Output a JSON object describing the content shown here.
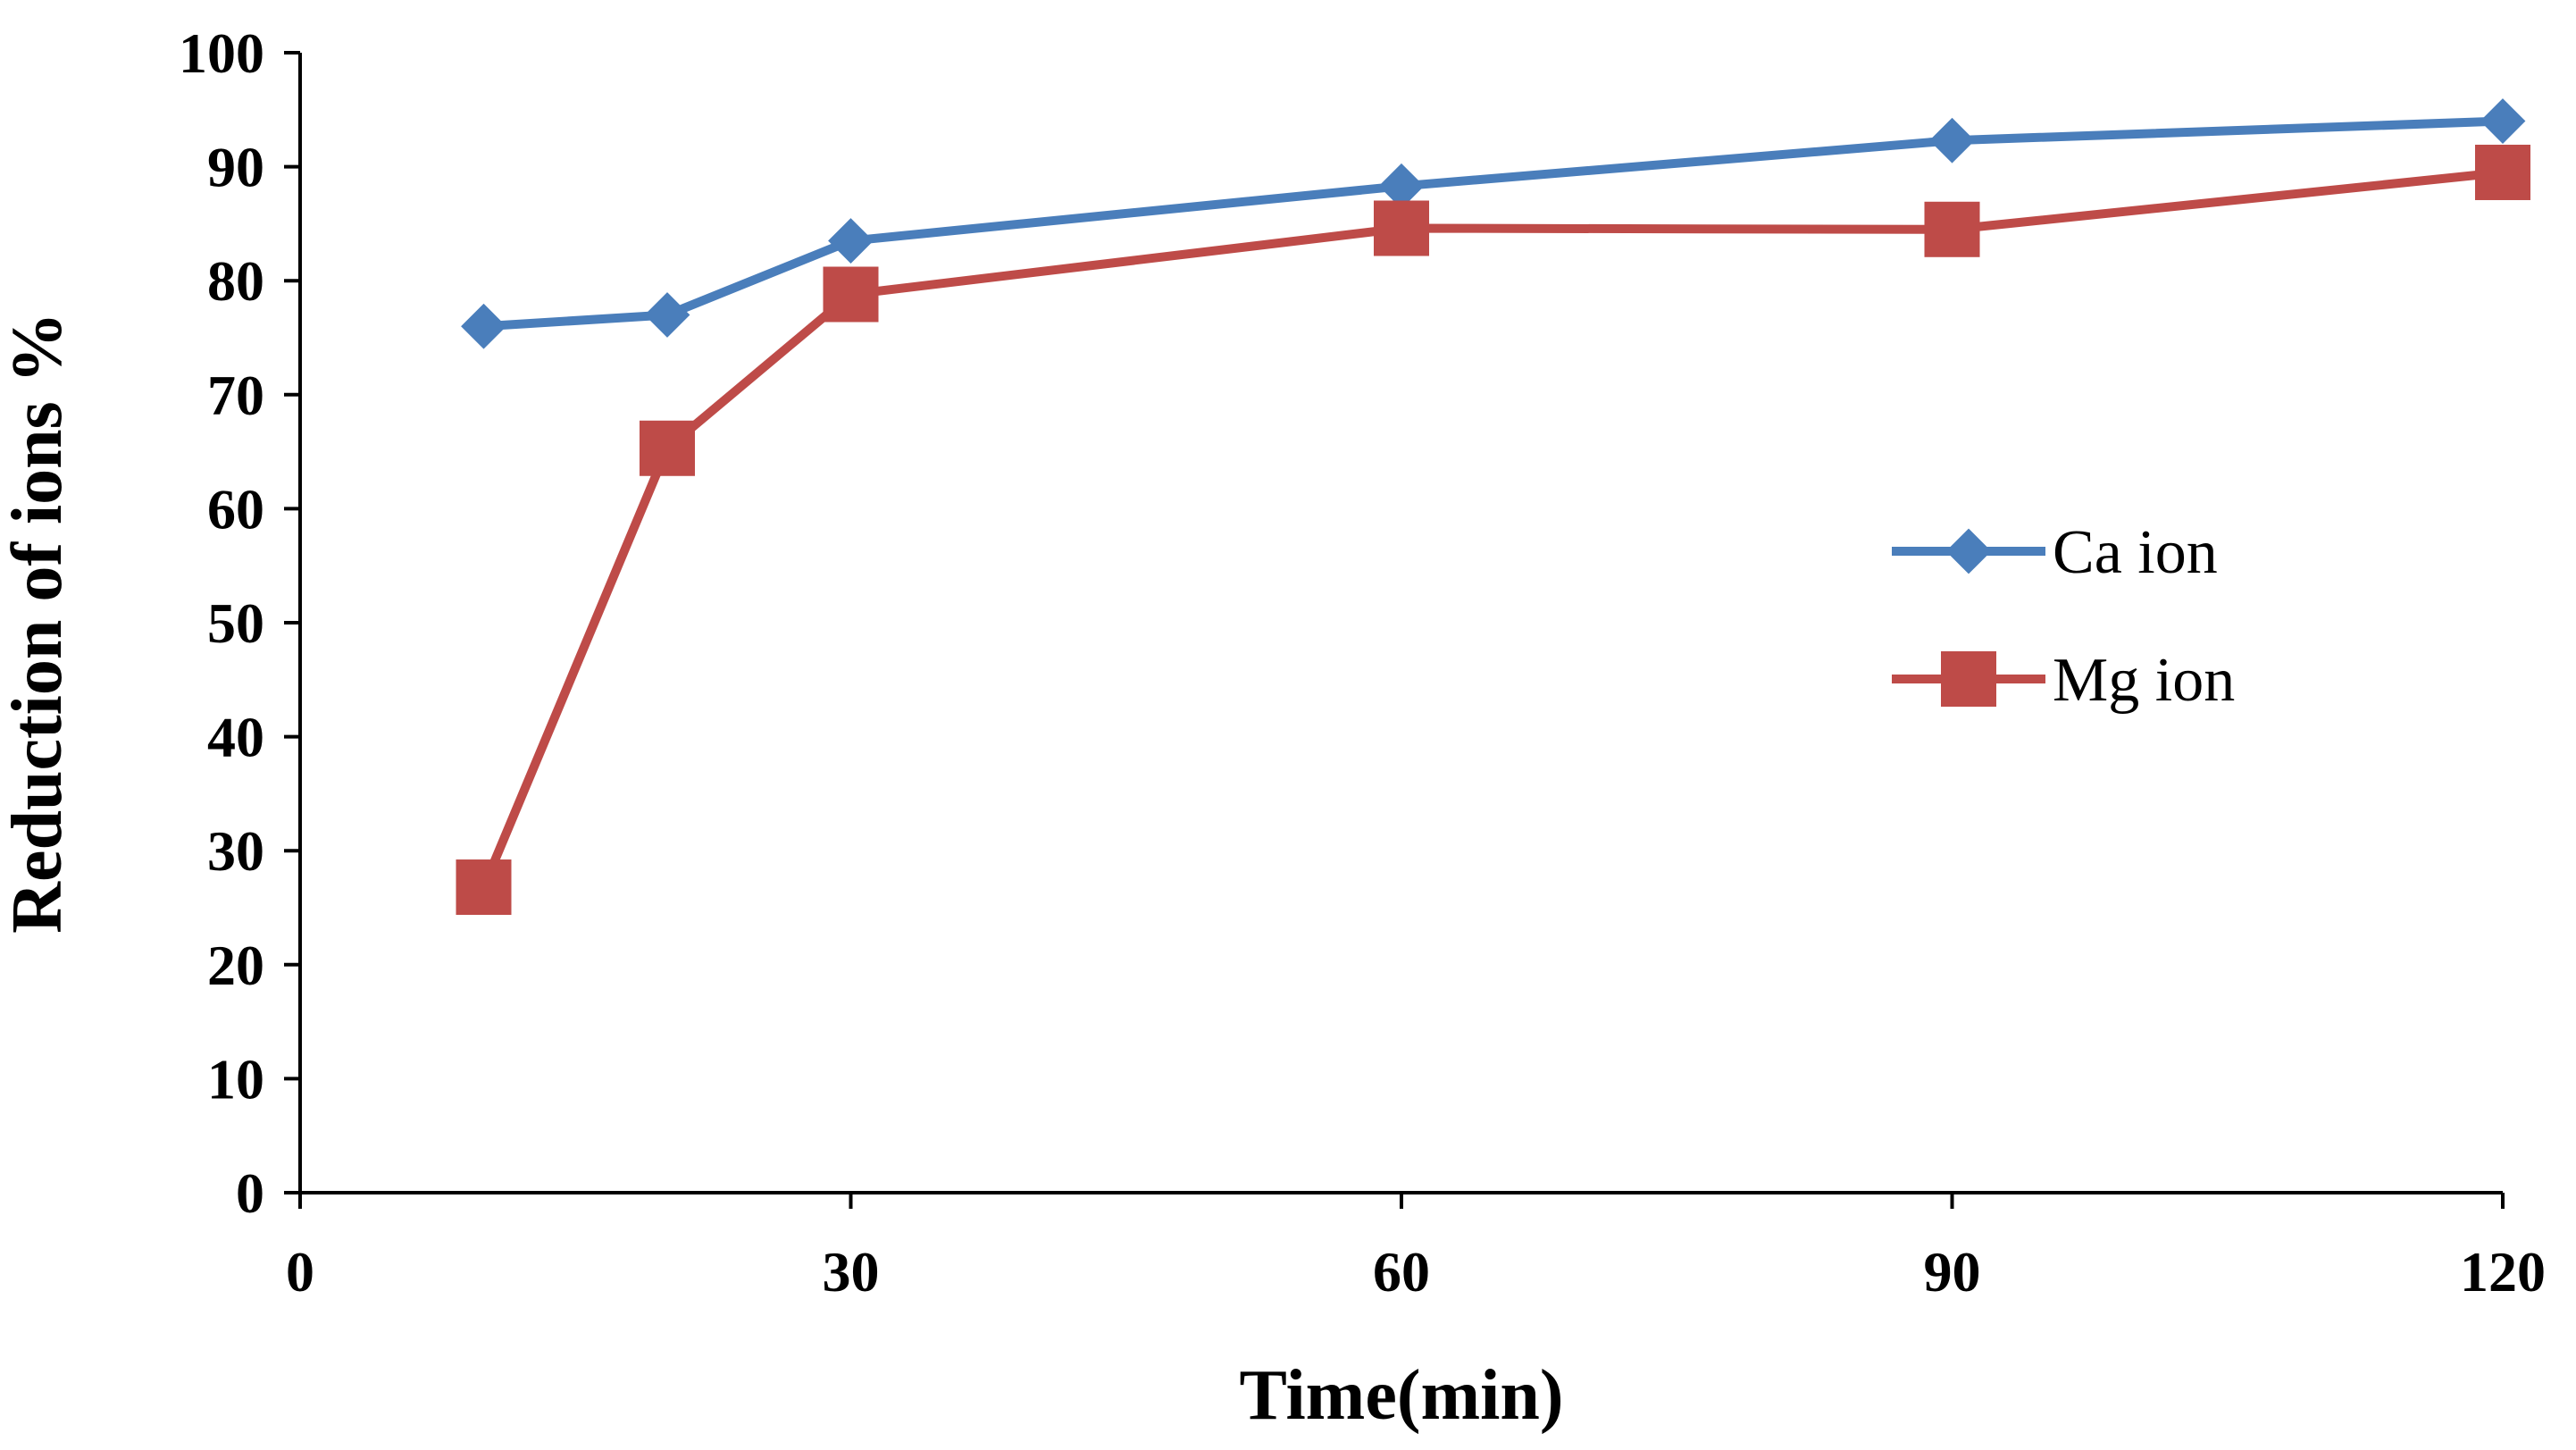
{
  "chart_data": {
    "type": "line",
    "title": "",
    "xlabel": "Time(min)",
    "ylabel": "Reduction of  ions %",
    "xlim": [
      0,
      120
    ],
    "ylim": [
      0,
      100
    ],
    "x_ticks": [
      0,
      30,
      60,
      90,
      120
    ],
    "y_ticks": [
      0,
      10,
      20,
      30,
      40,
      50,
      60,
      70,
      80,
      90,
      100
    ],
    "grid": false,
    "legend_position": "right-middle",
    "series": [
      {
        "name": "Ca ion",
        "color": "#4A7EBB",
        "marker": "diamond",
        "x": [
          10,
          20,
          30,
          60,
          90,
          120
        ],
        "values": [
          76,
          77,
          83.5,
          88.3,
          92.3,
          94
        ]
      },
      {
        "name": "Mg ion",
        "color": "#BE4B48",
        "marker": "square",
        "x": [
          10,
          20,
          30,
          60,
          90,
          120
        ],
        "values": [
          26.8,
          65.3,
          78.8,
          84.6,
          84.5,
          89.5
        ]
      }
    ]
  }
}
